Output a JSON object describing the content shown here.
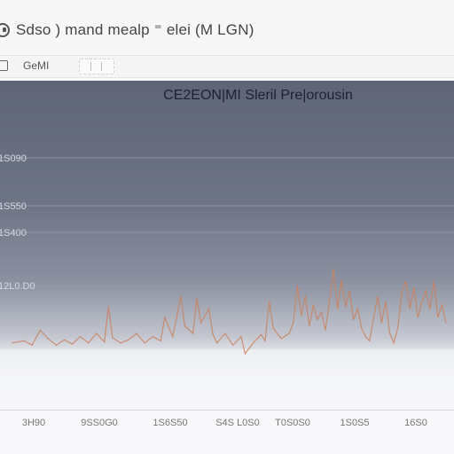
{
  "window": {
    "title": "Sdso ) mand mealp ⁼ elei (M LGN)",
    "icon": "app-icon"
  },
  "toolbar": {
    "icon": "toolbar-icon",
    "label": "GeMI"
  },
  "colors": {
    "plot_bg_top": "#5e6577",
    "plot_bg_bottom": "#dcdee4",
    "series": "#c9825f",
    "grid": "#9aa0ad"
  },
  "chart_data": {
    "type": "line",
    "title": "CE2EON|MI Sleril Pre|orousin",
    "y_ticks": [
      {
        "label": "1S090",
        "value": 1800
      },
      {
        "label": "1S550",
        "value": 1350
      },
      {
        "label": "1S400",
        "value": 1100
      },
      {
        "label": "12L0.D0",
        "value": 600
      }
    ],
    "ylim": [
      0,
      2800
    ],
    "x_ticks": [
      {
        "label": "3H90",
        "value": 0
      },
      {
        "label": "9SS0G0",
        "value": 16
      },
      {
        "label": "1S6S50",
        "value": 33
      },
      {
        "label": "S4S L0S0",
        "value": 50
      },
      {
        "label": "T0S0S0",
        "value": 66
      },
      {
        "label": "1S0S5",
        "value": 83
      },
      {
        "label": "16S0",
        "value": 100
      }
    ],
    "xlim": [
      -3,
      110
    ],
    "grid": true,
    "series": [
      {
        "values": [
          [
            0,
            60
          ],
          [
            3,
            80
          ],
          [
            5,
            40
          ],
          [
            7,
            180
          ],
          [
            9,
            100
          ],
          [
            11,
            40
          ],
          [
            13,
            90
          ],
          [
            15,
            50
          ],
          [
            17,
            120
          ],
          [
            19,
            60
          ],
          [
            21,
            150
          ],
          [
            23,
            70
          ],
          [
            24,
            400
          ],
          [
            25,
            110
          ],
          [
            27,
            60
          ],
          [
            29,
            90
          ],
          [
            31,
            150
          ],
          [
            33,
            60
          ],
          [
            35,
            120
          ],
          [
            37,
            80
          ],
          [
            38,
            300
          ],
          [
            40,
            120
          ],
          [
            42,
            500
          ],
          [
            43,
            220
          ],
          [
            45,
            150
          ],
          [
            46,
            480
          ],
          [
            47,
            250
          ],
          [
            49,
            380
          ],
          [
            50,
            140
          ],
          [
            51,
            60
          ],
          [
            53,
            150
          ],
          [
            55,
            40
          ],
          [
            57,
            120
          ],
          [
            58,
            -40
          ],
          [
            60,
            60
          ],
          [
            62,
            140
          ],
          [
            63,
            80
          ],
          [
            64,
            450
          ],
          [
            65,
            200
          ],
          [
            67,
            100
          ],
          [
            69,
            150
          ],
          [
            70,
            250
          ],
          [
            71,
            600
          ],
          [
            72,
            320
          ],
          [
            73,
            500
          ],
          [
            74,
            220
          ],
          [
            75,
            420
          ],
          [
            76,
            280
          ],
          [
            77,
            350
          ],
          [
            78,
            180
          ],
          [
            79,
            450
          ],
          [
            80,
            750
          ],
          [
            81,
            380
          ],
          [
            82,
            650
          ],
          [
            83,
            400
          ],
          [
            84,
            550
          ],
          [
            85,
            280
          ],
          [
            86,
            380
          ],
          [
            87,
            200
          ],
          [
            88,
            120
          ],
          [
            89,
            80
          ],
          [
            90,
            300
          ],
          [
            91,
            500
          ],
          [
            92,
            250
          ],
          [
            93,
            450
          ],
          [
            94,
            150
          ],
          [
            95,
            60
          ],
          [
            96,
            200
          ],
          [
            97,
            540
          ],
          [
            98,
            640
          ],
          [
            99,
            380
          ],
          [
            100,
            580
          ],
          [
            101,
            300
          ],
          [
            102,
            450
          ],
          [
            103,
            550
          ],
          [
            104,
            380
          ],
          [
            105,
            640
          ],
          [
            106,
            300
          ],
          [
            107,
            420
          ],
          [
            108,
            250
          ]
        ]
      }
    ]
  }
}
